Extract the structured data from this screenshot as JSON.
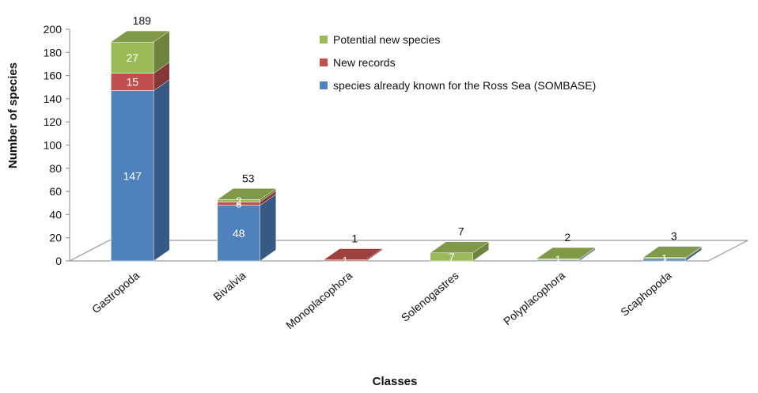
{
  "chart_data": {
    "type": "bar",
    "stacked": true,
    "three_d": true,
    "xlabel": "Classes",
    "ylabel": "Number of species",
    "ylim": [
      0,
      200
    ],
    "yticks": [
      0,
      20,
      40,
      60,
      80,
      100,
      120,
      140,
      160,
      180,
      200
    ],
    "categories": [
      "Gastropoda",
      "Bivalvia",
      "Monoplacophora",
      "Solenogastres",
      "Polyplacophora",
      "Scaphopoda"
    ],
    "series": [
      {
        "name": "species already known for the Ross Sea (SOMBASE)",
        "color": "#4f81bd",
        "values": [
          147,
          48,
          0,
          0,
          1,
          2
        ]
      },
      {
        "name": "New records",
        "color": "#c0504d",
        "values": [
          15,
          3,
          1,
          0,
          0,
          0
        ]
      },
      {
        "name": "Potential new species",
        "color": "#9bbb59",
        "values": [
          27,
          2,
          0,
          7,
          1,
          1
        ]
      }
    ],
    "totals": [
      189,
      53,
      1,
      7,
      2,
      3
    ],
    "legend": {
      "position": "top-right",
      "order": [
        "Potential new species",
        "New records",
        "species already known for the Ross Sea (SOMBASE)"
      ]
    }
  }
}
